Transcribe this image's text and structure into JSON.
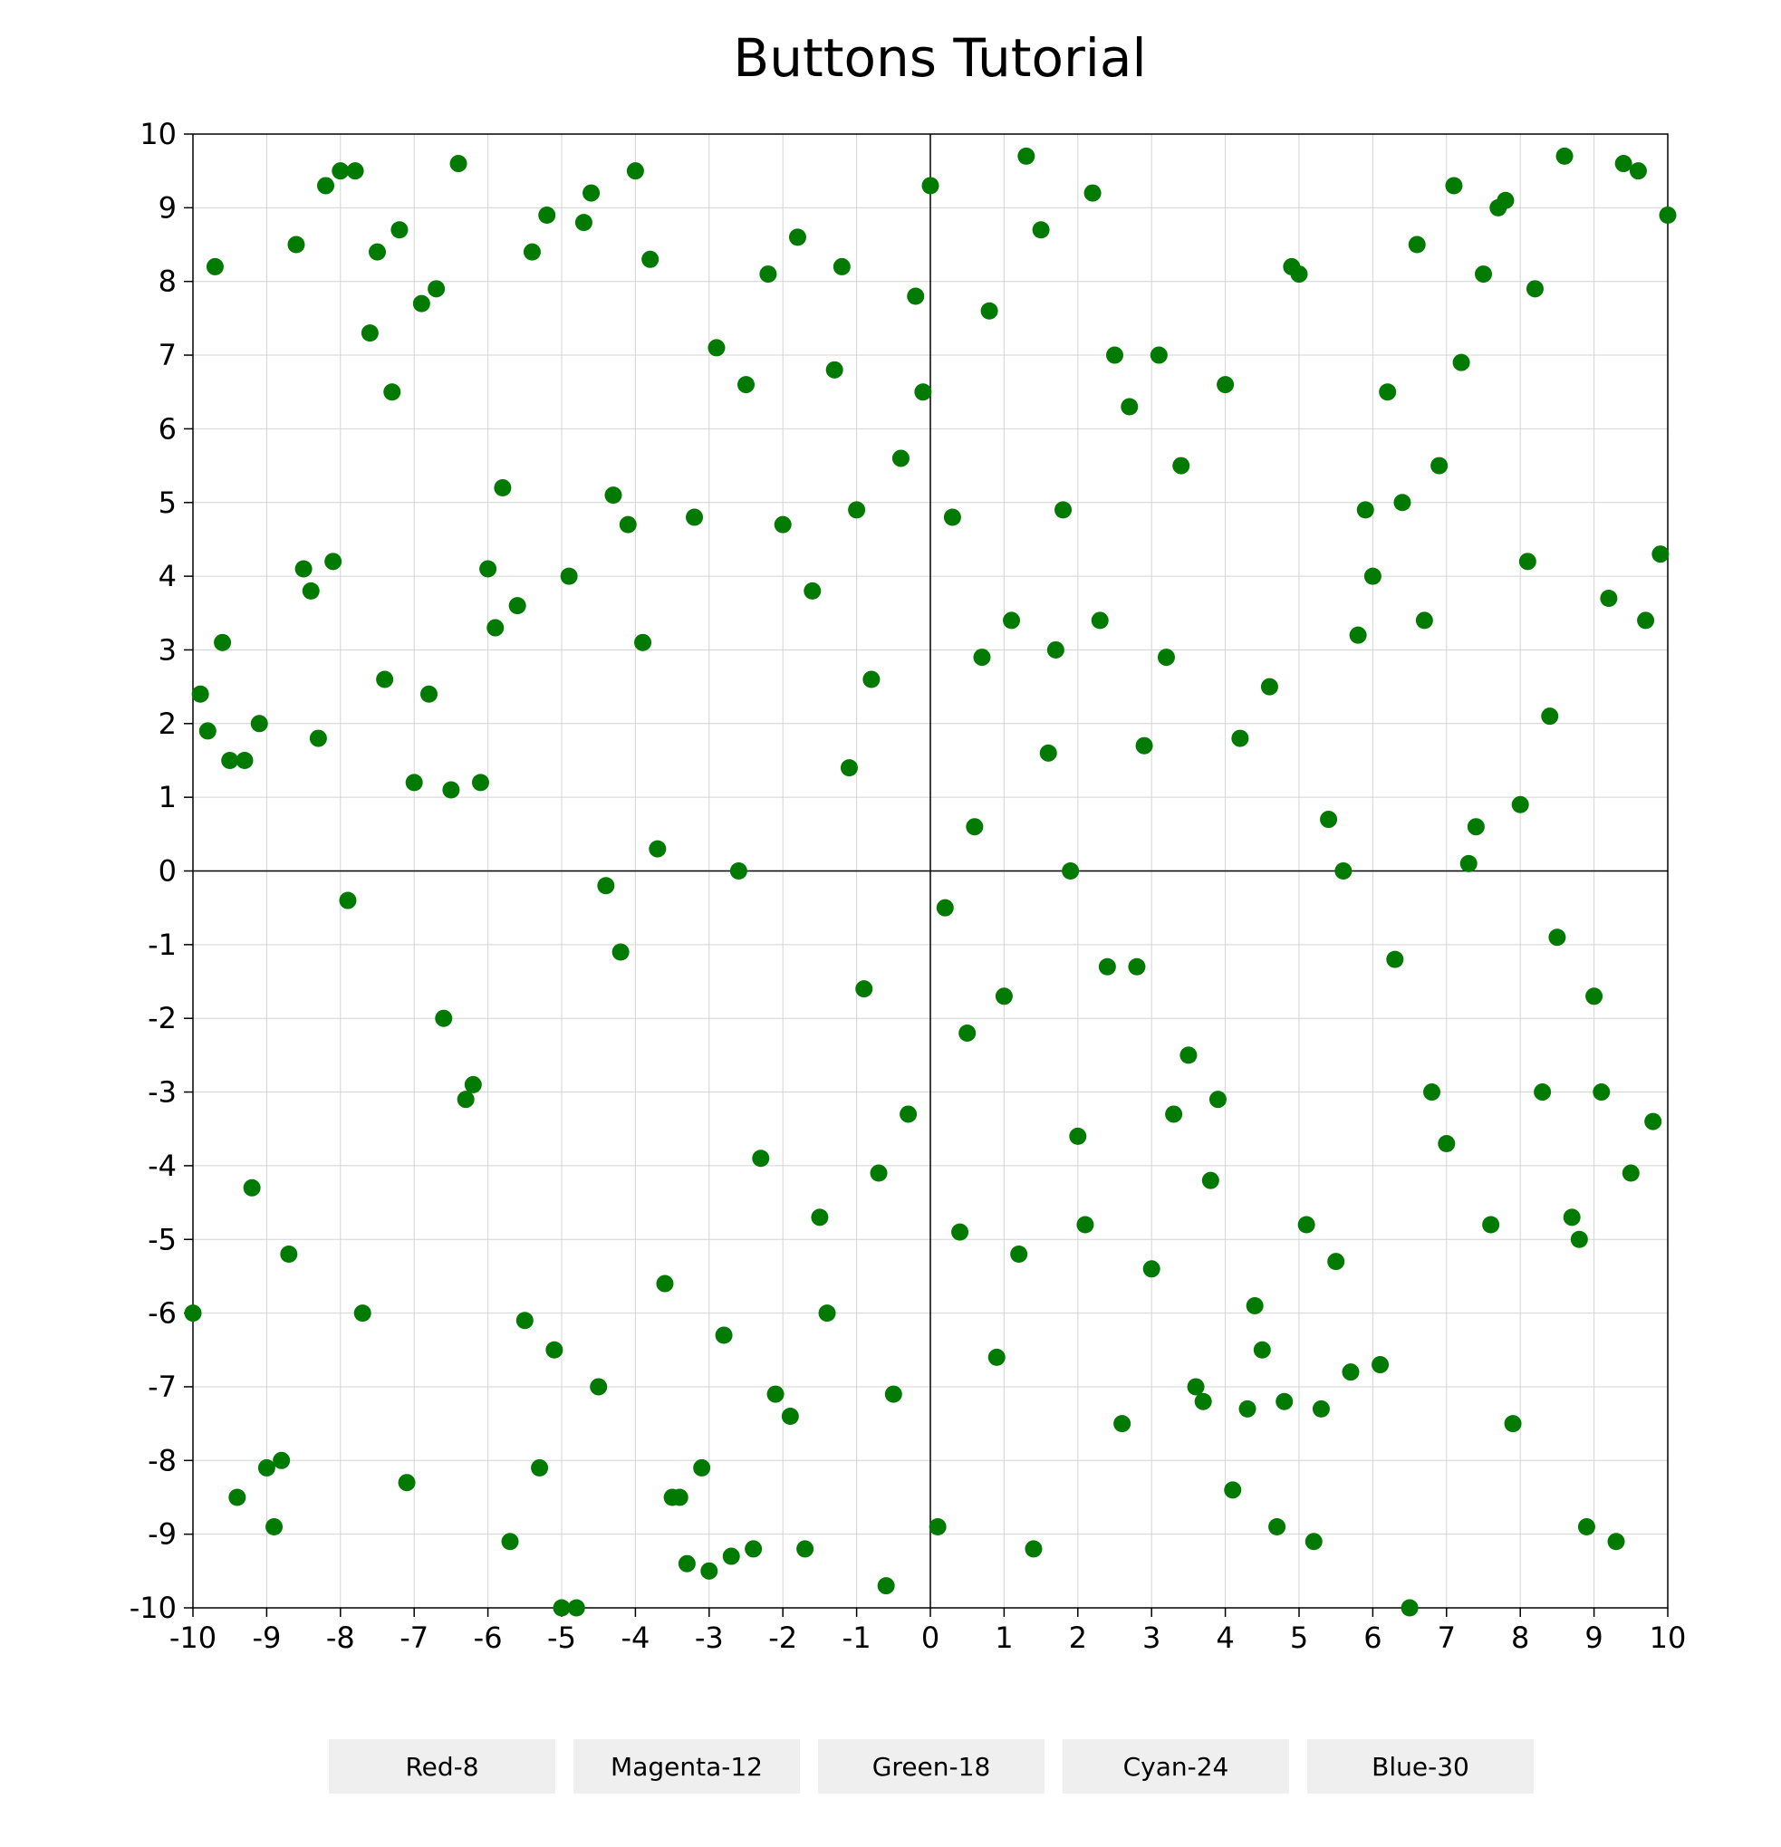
{
  "title": "Buttons Tutorial",
  "buttons": [
    "Red-8",
    "Magenta-12",
    "Green-18",
    "Cyan-24",
    "Blue-30"
  ],
  "colors": {
    "points": "#007a00",
    "grid": "#d4d4d4",
    "axis": "#000000",
    "button_bg": "#efefef"
  },
  "chart_data": {
    "type": "scatter",
    "title": "Buttons Tutorial",
    "xlabel": "",
    "ylabel": "",
    "xlim": [
      -10,
      10
    ],
    "ylim": [
      -10,
      10
    ],
    "x_ticks": [
      "-10",
      "-9",
      "-8",
      "-7",
      "-6",
      "-5",
      "-4",
      "-3",
      "-2",
      "-1",
      "0",
      "1",
      "2",
      "3",
      "4",
      "5",
      "6",
      "7",
      "8",
      "9",
      "10"
    ],
    "y_ticks": [
      "10",
      "9",
      "8",
      "7",
      "6",
      "5",
      "4",
      "3",
      "2",
      "1",
      "0",
      "-1",
      "-2",
      "-3",
      "-4",
      "-5",
      "-6",
      "-7",
      "-8",
      "-9",
      "-10"
    ],
    "grid": true,
    "series": [
      {
        "color": "#007a00",
        "points": [
          [
            -9.9,
            2.4
          ],
          [
            -9.8,
            1.9
          ],
          [
            -9.7,
            8.2
          ],
          [
            -9.6,
            3.1
          ],
          [
            -9.5,
            1.5
          ],
          [
            -9.3,
            1.5
          ],
          [
            -9.1,
            2.0
          ],
          [
            -8.6,
            8.5
          ],
          [
            -8.5,
            4.1
          ],
          [
            -8.4,
            3.8
          ],
          [
            -8.3,
            1.8
          ],
          [
            -8.2,
            9.3
          ],
          [
            -8.1,
            4.2
          ],
          [
            -8.0,
            9.5
          ],
          [
            -7.8,
            9.5
          ],
          [
            -7.6,
            7.3
          ],
          [
            -7.5,
            8.4
          ],
          [
            -7.4,
            2.6
          ],
          [
            -7.3,
            6.5
          ],
          [
            -7.2,
            8.7
          ],
          [
            -7.0,
            1.2
          ],
          [
            -6.9,
            7.7
          ],
          [
            -6.8,
            2.4
          ],
          [
            -6.7,
            7.9
          ],
          [
            -6.5,
            1.1
          ],
          [
            -6.4,
            9.6
          ],
          [
            -6.1,
            1.2
          ],
          [
            -6.0,
            4.1
          ],
          [
            -5.9,
            3.3
          ],
          [
            -5.8,
            5.2
          ],
          [
            -5.6,
            3.6
          ],
          [
            -5.4,
            8.4
          ],
          [
            -5.2,
            8.9
          ],
          [
            -4.9,
            4.0
          ],
          [
            -4.7,
            8.8
          ],
          [
            -4.6,
            9.2
          ],
          [
            -4.3,
            5.1
          ],
          [
            -4.1,
            4.7
          ],
          [
            -4.0,
            9.5
          ],
          [
            -3.9,
            3.1
          ],
          [
            -3.8,
            8.3
          ],
          [
            -3.7,
            0.3
          ],
          [
            -3.2,
            4.8
          ],
          [
            -2.9,
            7.1
          ],
          [
            -2.5,
            6.6
          ],
          [
            -2.2,
            8.1
          ],
          [
            -2.0,
            4.7
          ],
          [
            -1.8,
            8.6
          ],
          [
            -1.6,
            3.8
          ],
          [
            -1.3,
            6.8
          ],
          [
            -1.2,
            8.2
          ],
          [
            -1.1,
            1.4
          ],
          [
            -1.0,
            4.9
          ],
          [
            -0.8,
            2.6
          ],
          [
            -0.4,
            5.6
          ],
          [
            -0.2,
            7.8
          ],
          [
            -0.1,
            6.5
          ],
          [
            0.0,
            9.3
          ],
          [
            0.3,
            4.8
          ],
          [
            0.6,
            0.6
          ],
          [
            0.7,
            2.9
          ],
          [
            0.8,
            7.6
          ],
          [
            1.1,
            3.4
          ],
          [
            1.3,
            9.7
          ],
          [
            1.5,
            8.7
          ],
          [
            1.6,
            1.6
          ],
          [
            1.7,
            3.0
          ],
          [
            1.8,
            4.9
          ],
          [
            2.2,
            9.2
          ],
          [
            2.3,
            3.4
          ],
          [
            2.5,
            7.0
          ],
          [
            2.7,
            6.3
          ],
          [
            2.9,
            1.7
          ],
          [
            3.1,
            7.0
          ],
          [
            3.2,
            2.9
          ],
          [
            3.4,
            5.5
          ],
          [
            4.0,
            6.6
          ],
          [
            4.2,
            1.8
          ],
          [
            4.6,
            2.5
          ],
          [
            4.9,
            8.2
          ],
          [
            5.0,
            8.1
          ],
          [
            5.4,
            0.7
          ],
          [
            5.8,
            3.2
          ],
          [
            5.9,
            4.9
          ],
          [
            6.0,
            4.0
          ],
          [
            6.2,
            6.5
          ],
          [
            6.4,
            5.0
          ],
          [
            6.6,
            8.5
          ],
          [
            6.7,
            3.4
          ],
          [
            6.9,
            5.5
          ],
          [
            7.1,
            9.3
          ],
          [
            7.2,
            6.9
          ],
          [
            7.3,
            0.1
          ],
          [
            7.4,
            0.6
          ],
          [
            7.5,
            8.1
          ],
          [
            7.7,
            9.0
          ],
          [
            7.8,
            9.1
          ],
          [
            8.0,
            0.9
          ],
          [
            8.1,
            4.2
          ],
          [
            8.2,
            7.9
          ],
          [
            8.4,
            2.1
          ],
          [
            8.6,
            9.7
          ],
          [
            9.2,
            3.7
          ],
          [
            9.4,
            9.6
          ],
          [
            9.6,
            9.5
          ],
          [
            9.7,
            3.4
          ],
          [
            9.9,
            4.3
          ],
          [
            10.0,
            8.9
          ],
          [
            -2.6,
            0.0
          ],
          [
            1.9,
            0.0
          ],
          [
            5.6,
            0.0
          ],
          [
            -7.9,
            -0.4
          ],
          [
            -4.4,
            -0.2
          ],
          [
            -4.2,
            -1.1
          ],
          [
            -6.6,
            -2.0
          ],
          [
            -6.2,
            -2.9
          ],
          [
            -6.3,
            -3.1
          ],
          [
            -9.2,
            -4.3
          ],
          [
            -8.7,
            -5.2
          ],
          [
            -10.0,
            -6.0
          ],
          [
            -7.7,
            -6.0
          ],
          [
            -9.4,
            -8.5
          ],
          [
            -9.0,
            -8.1
          ],
          [
            -8.8,
            -8.0
          ],
          [
            -8.9,
            -8.9
          ],
          [
            -7.1,
            -8.3
          ],
          [
            -5.7,
            -9.1
          ],
          [
            -5.5,
            -6.1
          ],
          [
            -5.3,
            -8.1
          ],
          [
            -5.1,
            -6.5
          ],
          [
            -5.0,
            -10.0
          ],
          [
            -4.8,
            -10.0
          ],
          [
            -4.5,
            -7.0
          ],
          [
            -3.6,
            -5.6
          ],
          [
            -3.5,
            -8.5
          ],
          [
            -3.4,
            -8.5
          ],
          [
            -3.3,
            -9.4
          ],
          [
            -3.1,
            -8.1
          ],
          [
            -3.0,
            -9.5
          ],
          [
            -2.8,
            -6.3
          ],
          [
            -2.7,
            -9.3
          ],
          [
            -2.4,
            -9.2
          ],
          [
            -2.3,
            -3.9
          ],
          [
            -2.1,
            -7.1
          ],
          [
            -1.9,
            -7.4
          ],
          [
            -1.7,
            -9.2
          ],
          [
            -1.5,
            -4.7
          ],
          [
            -1.4,
            -6.0
          ],
          [
            -0.9,
            -1.6
          ],
          [
            -0.7,
            -4.1
          ],
          [
            -0.6,
            -9.7
          ],
          [
            -0.5,
            -7.1
          ],
          [
            -0.3,
            -3.3
          ],
          [
            0.1,
            -8.9
          ],
          [
            0.2,
            -0.5
          ],
          [
            0.4,
            -4.9
          ],
          [
            0.5,
            -2.2
          ],
          [
            0.9,
            -6.6
          ],
          [
            1.0,
            -1.7
          ],
          [
            1.2,
            -5.2
          ],
          [
            1.4,
            -9.2
          ],
          [
            2.0,
            -3.6
          ],
          [
            2.1,
            -4.8
          ],
          [
            2.4,
            -1.3
          ],
          [
            2.6,
            -7.5
          ],
          [
            2.8,
            -1.3
          ],
          [
            3.0,
            -5.4
          ],
          [
            3.3,
            -3.3
          ],
          [
            3.5,
            -2.5
          ],
          [
            3.6,
            -7.0
          ],
          [
            3.7,
            -7.2
          ],
          [
            3.8,
            -4.2
          ],
          [
            3.9,
            -3.1
          ],
          [
            4.1,
            -8.4
          ],
          [
            4.3,
            -7.3
          ],
          [
            4.4,
            -5.9
          ],
          [
            4.5,
            -6.5
          ],
          [
            4.7,
            -8.9
          ],
          [
            4.8,
            -7.2
          ],
          [
            5.1,
            -4.8
          ],
          [
            5.2,
            -9.1
          ],
          [
            5.3,
            -7.3
          ],
          [
            5.5,
            -5.3
          ],
          [
            5.7,
            -6.8
          ],
          [
            6.1,
            -6.7
          ],
          [
            6.3,
            -1.2
          ],
          [
            6.5,
            -10.0
          ],
          [
            6.8,
            -3.0
          ],
          [
            7.0,
            -3.7
          ],
          [
            7.6,
            -4.8
          ],
          [
            7.9,
            -7.5
          ],
          [
            8.3,
            -3.0
          ],
          [
            8.5,
            -0.9
          ],
          [
            8.7,
            -4.7
          ],
          [
            8.8,
            -5.0
          ],
          [
            8.9,
            -8.9
          ],
          [
            9.0,
            -1.7
          ],
          [
            9.1,
            -3.0
          ],
          [
            9.3,
            -9.1
          ],
          [
            9.5,
            -4.1
          ],
          [
            9.8,
            -3.4
          ]
        ]
      }
    ]
  }
}
